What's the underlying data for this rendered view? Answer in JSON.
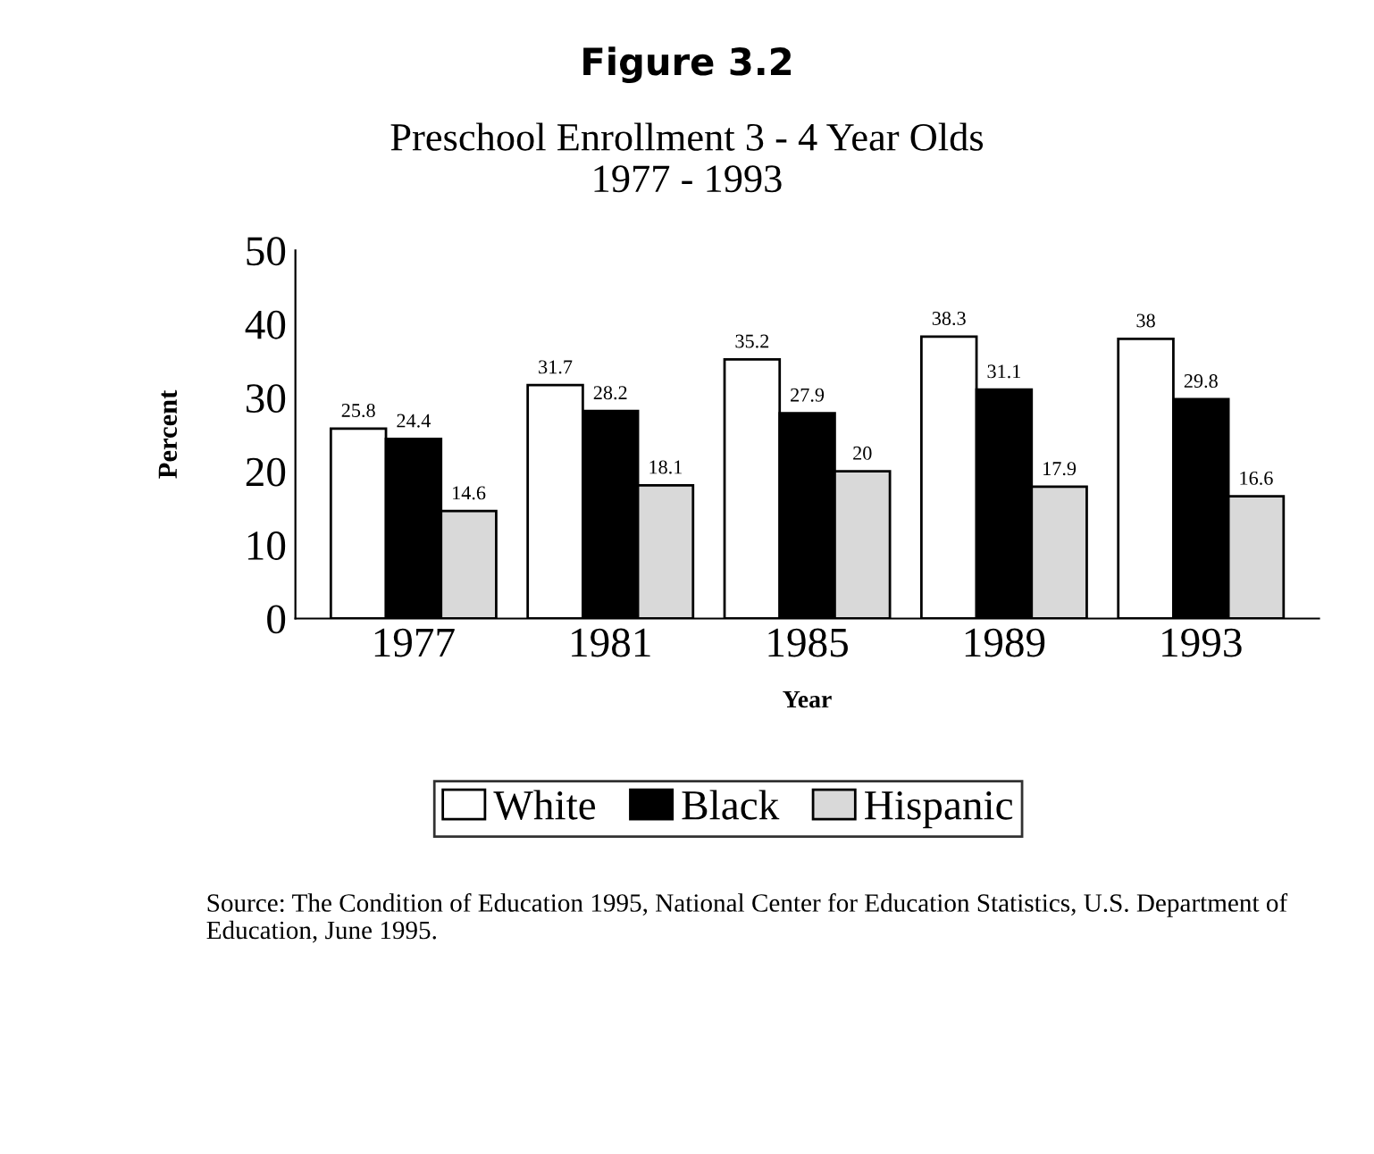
{
  "chart_data": {
    "type": "bar",
    "title": "Figure 3.2",
    "subtitle": "Preschool Enrollment 3 - 4 Year Olds\n1977 - 1993",
    "xlabel": "Year",
    "ylabel": "Percent",
    "categories": [
      "1977",
      "1981",
      "1985",
      "1989",
      "1993"
    ],
    "series": [
      {
        "name": "White",
        "color": "#ffffff",
        "values": [
          25.8,
          31.7,
          35.2,
          38.3,
          38
        ]
      },
      {
        "name": "Black",
        "color": "#000000",
        "values": [
          24.4,
          28.2,
          27.9,
          31.1,
          29.8
        ]
      },
      {
        "name": "Hispanic",
        "color": "#d9d9d9",
        "values": [
          14.6,
          18.1,
          20,
          17.9,
          16.6
        ]
      }
    ],
    "ylim": [
      0,
      50
    ],
    "yticks": [
      0,
      10,
      20,
      30,
      40,
      50
    ],
    "data_labels": true,
    "grid": false,
    "legend": "bottom",
    "annotations": [
      "Source: The Condition of Education 1995, National Center for Education Statistics, U.S. Department of Education, June 1995."
    ]
  }
}
